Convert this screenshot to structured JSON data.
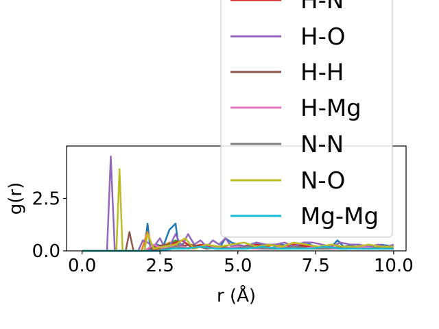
{
  "chart_data": {
    "type": "line",
    "xlabel": "r (Å)",
    "ylabel": "g(r)",
    "xlim": [
      -0.5,
      10.4
    ],
    "ylim": [
      0,
      5.0
    ],
    "x_ticks": [
      0.0,
      2.5,
      5.0,
      7.5,
      10.0
    ],
    "x_tick_labels": [
      "0.0",
      "2.5",
      "5.0",
      "7.5",
      "10.0"
    ],
    "y_ticks": [
      0.0,
      2.5
    ],
    "y_tick_labels": [
      "0.0",
      "2.5"
    ],
    "grid": false,
    "legend_position": "top-right",
    "legend_visible_entries": [
      "H-N",
      "H-O",
      "H-H",
      "H-Mg",
      "N-N",
      "N-O",
      "Mg-Mg"
    ],
    "series": [
      {
        "key": "s1",
        "color": "#1f77b4",
        "x": [
          0.0,
          2.0,
          2.1,
          2.2,
          2.4,
          2.6,
          2.8,
          3.0,
          3.1,
          3.3,
          3.6,
          4.0,
          4.4,
          4.6,
          4.8,
          5.2,
          5.6,
          6.0,
          6.4,
          6.8,
          7.2,
          7.6,
          8.0,
          8.2,
          8.4,
          8.8,
          9.2,
          9.6,
          10.0
        ],
        "y": [
          0.0,
          0.0,
          1.3,
          0.0,
          0.3,
          0.2,
          1.0,
          1.3,
          0.2,
          0.4,
          0.1,
          0.3,
          0.1,
          0.6,
          0.4,
          0.2,
          0.4,
          0.1,
          0.3,
          0.2,
          0.4,
          0.1,
          0.2,
          0.5,
          0.2,
          0.3,
          0.2,
          0.3,
          0.2
        ]
      },
      {
        "key": "s2",
        "color": "#ff7f0e",
        "x": [
          0.0,
          1.9,
          2.1,
          2.3,
          2.8,
          3.3,
          3.8,
          4.4,
          5.0,
          5.6,
          6.2,
          6.8,
          7.4,
          8.0,
          8.6,
          9.2,
          9.8,
          10.0
        ],
        "y": [
          0.0,
          0.0,
          0.9,
          0.0,
          0.4,
          0.1,
          0.3,
          0.1,
          0.2,
          0.1,
          0.3,
          0.1,
          0.2,
          0.1,
          0.2,
          0.1,
          0.2,
          0.1
        ]
      },
      {
        "key": "s3",
        "color": "#2ca02c",
        "x": [
          0.0,
          2.0,
          2.2,
          2.5,
          3.0,
          3.4,
          3.8,
          4.3,
          4.9,
          5.5,
          6.1,
          6.7,
          7.3,
          7.9,
          8.5,
          9.1,
          9.7,
          10.0
        ],
        "y": [
          0.0,
          0.0,
          0.2,
          0.1,
          0.5,
          0.1,
          0.2,
          0.1,
          0.1,
          0.2,
          0.1,
          0.1,
          0.2,
          0.1,
          0.1,
          0.2,
          0.1,
          0.1
        ]
      },
      {
        "key": "s4",
        "color": "#d62728",
        "x": [
          0.0,
          2.2,
          2.4,
          2.8,
          3.2,
          3.5,
          3.9,
          4.4,
          5.0,
          5.6,
          6.2,
          6.8,
          7.4,
          8.0,
          8.6,
          9.2,
          9.8,
          10.0
        ],
        "y": [
          0.0,
          0.0,
          0.1,
          0.3,
          0.5,
          0.2,
          0.3,
          0.1,
          0.2,
          0.3,
          0.1,
          0.3,
          0.2,
          0.1,
          0.2,
          0.1,
          0.2,
          0.1
        ]
      },
      {
        "key": "s5",
        "color": "#9467bd",
        "x": [
          0.0,
          0.8,
          0.92,
          1.05,
          1.8,
          1.95,
          2.1,
          2.3,
          2.5,
          2.6,
          2.8,
          3.0,
          3.2,
          3.4,
          3.6,
          3.8,
          4.0,
          4.2,
          4.4,
          4.6,
          4.8,
          5.0,
          5.3,
          5.6,
          5.9,
          6.2,
          6.5,
          6.8,
          7.1,
          7.4,
          7.7,
          8.0,
          8.3,
          8.6,
          8.9,
          9.2,
          9.5,
          9.8,
          10.0
        ],
        "y": [
          0.0,
          0.0,
          4.5,
          0.0,
          0.0,
          0.5,
          0.4,
          0.2,
          0.6,
          0.3,
          0.2,
          0.8,
          0.2,
          0.8,
          0.3,
          0.5,
          0.2,
          0.5,
          0.3,
          0.6,
          0.2,
          0.3,
          0.2,
          0.4,
          0.3,
          0.3,
          0.4,
          0.2,
          0.4,
          0.4,
          0.3,
          0.2,
          0.4,
          0.3,
          0.3,
          0.2,
          0.3,
          0.2,
          0.3
        ]
      },
      {
        "key": "s6",
        "color": "#8c564b",
        "x": [
          0.0,
          1.4,
          1.52,
          1.65,
          2.0,
          2.3,
          2.7,
          3.1,
          3.5,
          4.0,
          4.5,
          5.0,
          5.5,
          6.0,
          6.5,
          7.0,
          7.5,
          8.0,
          8.5,
          9.0,
          9.5,
          10.0
        ],
        "y": [
          0.0,
          0.0,
          0.9,
          0.0,
          0.0,
          0.2,
          0.3,
          0.2,
          0.3,
          0.1,
          0.2,
          0.1,
          0.2,
          0.1,
          0.1,
          0.2,
          0.1,
          0.1,
          0.2,
          0.1,
          0.1,
          0.1
        ]
      },
      {
        "key": "s7",
        "color": "#e377c2",
        "x": [
          0.0,
          2.0,
          2.3,
          2.6,
          2.9,
          3.2,
          3.6,
          4.0,
          4.5,
          5.0,
          5.5,
          6.0,
          6.5,
          7.0,
          7.5,
          8.0,
          8.5,
          9.0,
          9.5,
          10.0
        ],
        "y": [
          0.0,
          0.0,
          0.3,
          0.1,
          0.2,
          0.2,
          0.1,
          0.3,
          0.1,
          0.2,
          0.1,
          0.1,
          0.2,
          0.1,
          0.2,
          0.1,
          0.1,
          0.2,
          0.1,
          0.1
        ]
      },
      {
        "key": "s8",
        "color": "#7f7f7f",
        "x": [
          0.0,
          2.4,
          2.7,
          3.0,
          3.4,
          3.8,
          4.3,
          4.8,
          5.3,
          5.8,
          6.3,
          6.8,
          7.3,
          7.8,
          8.3,
          8.8,
          9.3,
          9.8,
          10.0
        ],
        "y": [
          0.0,
          0.0,
          0.1,
          0.2,
          0.1,
          0.2,
          0.1,
          0.1,
          0.2,
          0.1,
          0.1,
          0.2,
          0.1,
          0.1,
          0.2,
          0.1,
          0.1,
          0.2,
          0.1
        ]
      },
      {
        "key": "s9",
        "color": "#bcbd22",
        "x": [
          0.0,
          1.1,
          1.2,
          1.3,
          2.0,
          2.1,
          2.3,
          2.6,
          3.0,
          3.3,
          3.6,
          4.0,
          4.4,
          4.8,
          5.2,
          5.6,
          6.0,
          6.4,
          6.8,
          7.2,
          7.6,
          8.0,
          8.4,
          8.8,
          9.2,
          9.6,
          10.0
        ],
        "y": [
          0.0,
          0.0,
          3.9,
          0.0,
          0.0,
          0.8,
          0.1,
          0.2,
          0.3,
          0.6,
          0.1,
          0.3,
          0.2,
          0.3,
          0.4,
          0.2,
          0.3,
          0.2,
          0.4,
          0.3,
          0.2,
          0.3,
          0.2,
          0.2,
          0.3,
          0.2,
          0.2
        ]
      },
      {
        "key": "s10",
        "color": "#17becf",
        "x": [
          0.0,
          2.5,
          2.9,
          3.3,
          3.8,
          4.3,
          4.8,
          5.3,
          5.8,
          6.3,
          6.8,
          7.3,
          7.8,
          8.3,
          8.8,
          9.3,
          9.8,
          10.0
        ],
        "y": [
          0.0,
          0.0,
          0.1,
          0.1,
          0.2,
          0.1,
          0.1,
          0.1,
          0.2,
          0.1,
          0.1,
          0.1,
          0.2,
          0.1,
          0.1,
          0.1,
          0.1,
          0.1
        ]
      }
    ],
    "legend": [
      {
        "label": "H-N",
        "color": "#d62728"
      },
      {
        "label": "H-O",
        "color": "#9467bd"
      },
      {
        "label": "H-H",
        "color": "#8c564b"
      },
      {
        "label": "H-Mg",
        "color": "#e377c2"
      },
      {
        "label": "N-N",
        "color": "#7f7f7f"
      },
      {
        "label": "N-O",
        "color": "#bcbd22"
      },
      {
        "label": "Mg-Mg",
        "color": "#17becf"
      }
    ]
  }
}
